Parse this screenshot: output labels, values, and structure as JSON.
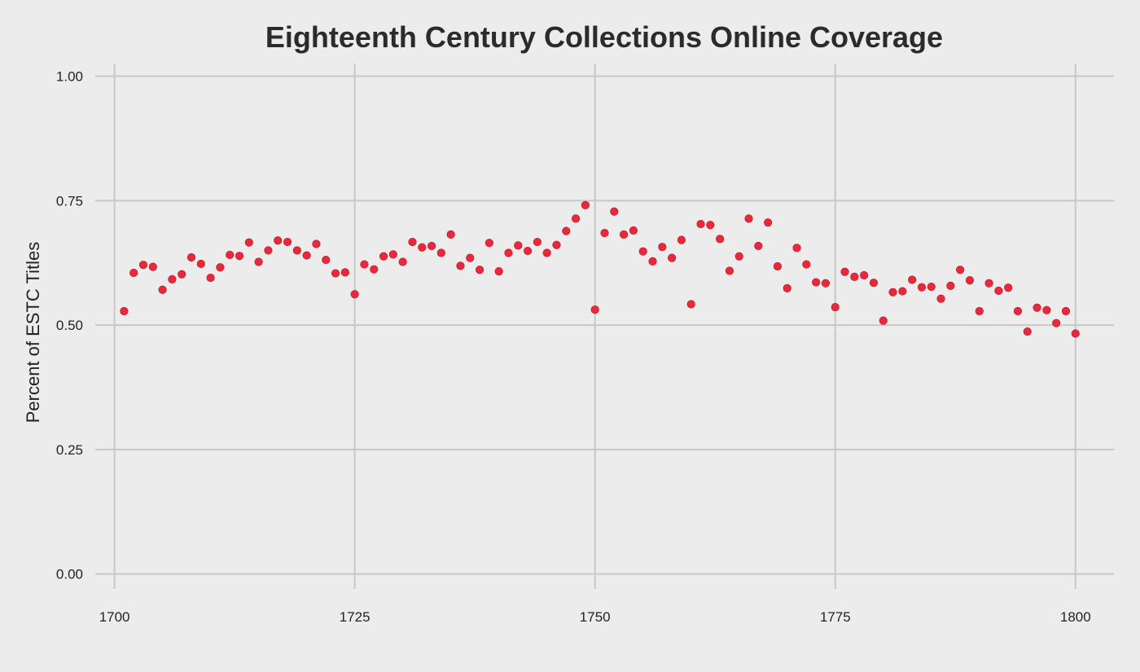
{
  "chart_data": {
    "type": "scatter",
    "title": "Eighteenth Century Collections Online Coverage",
    "xlabel": "",
    "ylabel": "Percent of ESTC Titles",
    "xlim": [
      1698,
      1804
    ],
    "ylim": [
      -0.03,
      1.05
    ],
    "x_ticks": [
      1700,
      1725,
      1750,
      1775,
      1800
    ],
    "y_ticks": [
      0.0,
      0.25,
      0.5,
      0.75,
      1.0
    ],
    "x_tick_labels": [
      "1700",
      "1725",
      "1750",
      "1775",
      "1800"
    ],
    "y_tick_labels": [
      "0.00",
      "0.25",
      "0.50",
      "0.75",
      "1.00"
    ],
    "grid": true,
    "point_color": "#e8283b",
    "x": [
      1701,
      1702,
      1703,
      1704,
      1705,
      1706,
      1707,
      1708,
      1709,
      1710,
      1711,
      1712,
      1713,
      1714,
      1715,
      1716,
      1717,
      1718,
      1719,
      1720,
      1721,
      1722,
      1723,
      1724,
      1725,
      1726,
      1727,
      1728,
      1729,
      1730,
      1731,
      1732,
      1733,
      1734,
      1735,
      1736,
      1737,
      1738,
      1739,
      1740,
      1741,
      1742,
      1743,
      1744,
      1745,
      1746,
      1747,
      1748,
      1749,
      1750,
      1751,
      1752,
      1753,
      1754,
      1755,
      1756,
      1757,
      1758,
      1759,
      1760,
      1761,
      1762,
      1763,
      1764,
      1765,
      1766,
      1767,
      1768,
      1769,
      1770,
      1771,
      1772,
      1773,
      1774,
      1775,
      1776,
      1777,
      1778,
      1779,
      1780,
      1781,
      1782,
      1783,
      1784,
      1785,
      1786,
      1787,
      1788,
      1789,
      1790,
      1791,
      1792,
      1793,
      1794,
      1795,
      1796,
      1797,
      1798,
      1799,
      1800
    ],
    "y": [
      0.528,
      0.605,
      0.621,
      0.617,
      0.571,
      0.592,
      0.602,
      0.636,
      0.623,
      0.595,
      0.616,
      0.641,
      0.639,
      0.666,
      0.627,
      0.65,
      0.67,
      0.667,
      0.65,
      0.64,
      0.663,
      0.631,
      0.604,
      0.606,
      0.562,
      0.622,
      0.612,
      0.638,
      0.642,
      0.627,
      0.667,
      0.656,
      0.659,
      0.645,
      0.682,
      0.619,
      0.635,
      0.611,
      0.665,
      0.608,
      0.645,
      0.66,
      0.649,
      0.667,
      0.645,
      0.661,
      0.689,
      0.714,
      0.741,
      0.531,
      0.685,
      0.728,
      0.682,
      0.69,
      0.648,
      0.628,
      0.657,
      0.635,
      0.671,
      0.542,
      0.703,
      0.701,
      0.673,
      0.609,
      0.638,
      0.714,
      0.659,
      0.706,
      0.618,
      0.574,
      0.655,
      0.622,
      0.586,
      0.584,
      0.536,
      0.607,
      0.597,
      0.6,
      0.585,
      0.509,
      0.566,
      0.568,
      0.591,
      0.576,
      0.577,
      0.553,
      0.579,
      0.611,
      0.59,
      0.528,
      0.584,
      0.569,
      0.575,
      0.528,
      0.487,
      0.535,
      0.53,
      0.504,
      0.528,
      0.483
    ]
  }
}
